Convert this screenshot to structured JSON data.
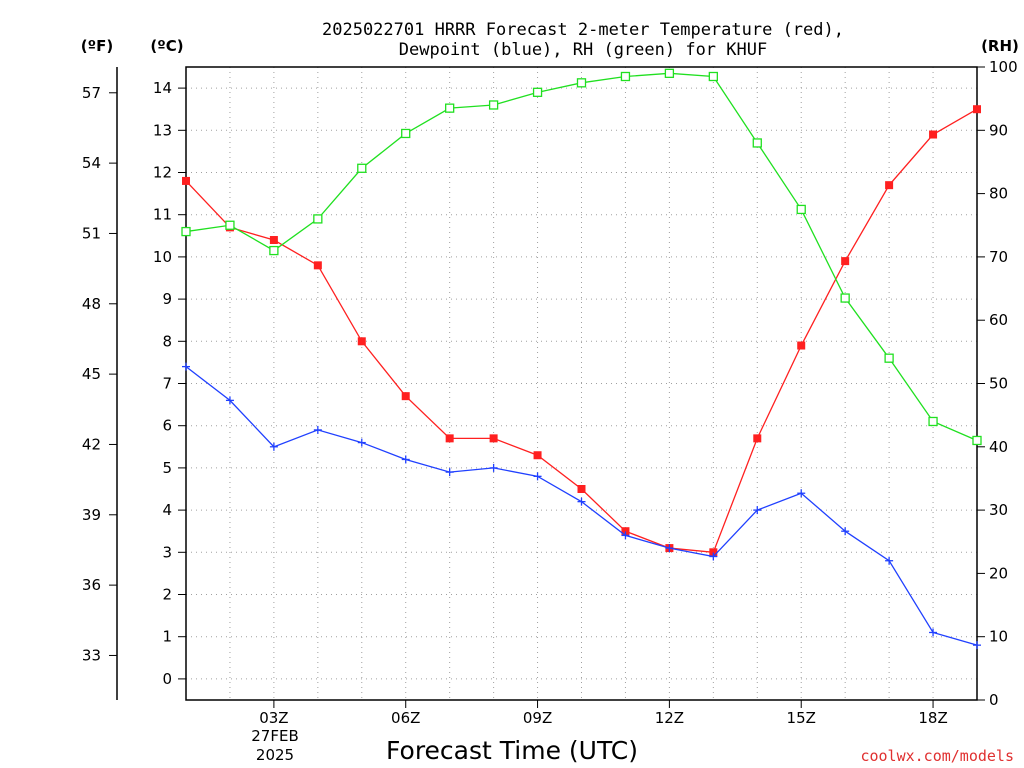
{
  "chart_data": {
    "type": "line",
    "title_line1": "2025022701 HRRR Forecast 2-meter Temperature (red),",
    "title_line2": "Dewpoint (blue), RH (green) for KHUF",
    "xlabel": "Forecast Time (UTC)",
    "watermark": "coolwx.com/models",
    "date_label_line1": "27FEB",
    "date_label_line2": "2025",
    "unit_left_f": "(ºF)",
    "unit_left_c": "(ºC)",
    "unit_right": "(RH)",
    "x": [
      1,
      2,
      3,
      4,
      5,
      6,
      7,
      8,
      9,
      10,
      11,
      12,
      13,
      14,
      15,
      16,
      17,
      18,
      19
    ],
    "xlim": [
      1,
      19
    ],
    "x_ticks": [
      {
        "value": 3,
        "label": "03Z"
      },
      {
        "value": 6,
        "label": "06Z"
      },
      {
        "value": 9,
        "label": "09Z"
      },
      {
        "value": 12,
        "label": "12Z"
      },
      {
        "value": 15,
        "label": "15Z"
      },
      {
        "value": 18,
        "label": "18Z"
      }
    ],
    "ylim_c": [
      -0.5,
      14.5
    ],
    "yticks_c": [
      0,
      1,
      2,
      3,
      4,
      5,
      6,
      7,
      8,
      9,
      10,
      11,
      12,
      13,
      14
    ],
    "yticks_f": [
      33,
      36,
      39,
      42,
      45,
      48,
      51,
      54,
      57
    ],
    "ylim_rh": [
      0,
      100
    ],
    "yticks_rh": [
      0,
      10,
      20,
      30,
      40,
      50,
      60,
      70,
      80,
      90,
      100
    ],
    "grid": true,
    "series": [
      {
        "name": "Temperature",
        "color": "#ff2020",
        "axis": "c",
        "marker": "square-filled",
        "values": [
          11.8,
          10.7,
          10.4,
          9.8,
          8.0,
          6.7,
          5.7,
          5.7,
          5.3,
          4.5,
          3.5,
          3.1,
          3.0,
          5.7,
          7.9,
          9.9,
          11.7,
          12.9,
          13.5
        ]
      },
      {
        "name": "Dewpoint",
        "color": "#2040ff",
        "axis": "c",
        "marker": "plus",
        "values": [
          7.4,
          6.6,
          5.5,
          5.9,
          5.6,
          5.2,
          4.9,
          5.0,
          4.8,
          4.2,
          3.4,
          3.1,
          2.9,
          4.0,
          4.4,
          3.5,
          2.8,
          1.1,
          0.8
        ]
      },
      {
        "name": "RH",
        "color": "#20e020",
        "axis": "rh",
        "marker": "square-open",
        "values": [
          74,
          75,
          71,
          76,
          84,
          89.5,
          93.5,
          94,
          96,
          97.5,
          98.5,
          99,
          98.5,
          88,
          77.5,
          63.5,
          54,
          44,
          41
        ]
      }
    ]
  }
}
